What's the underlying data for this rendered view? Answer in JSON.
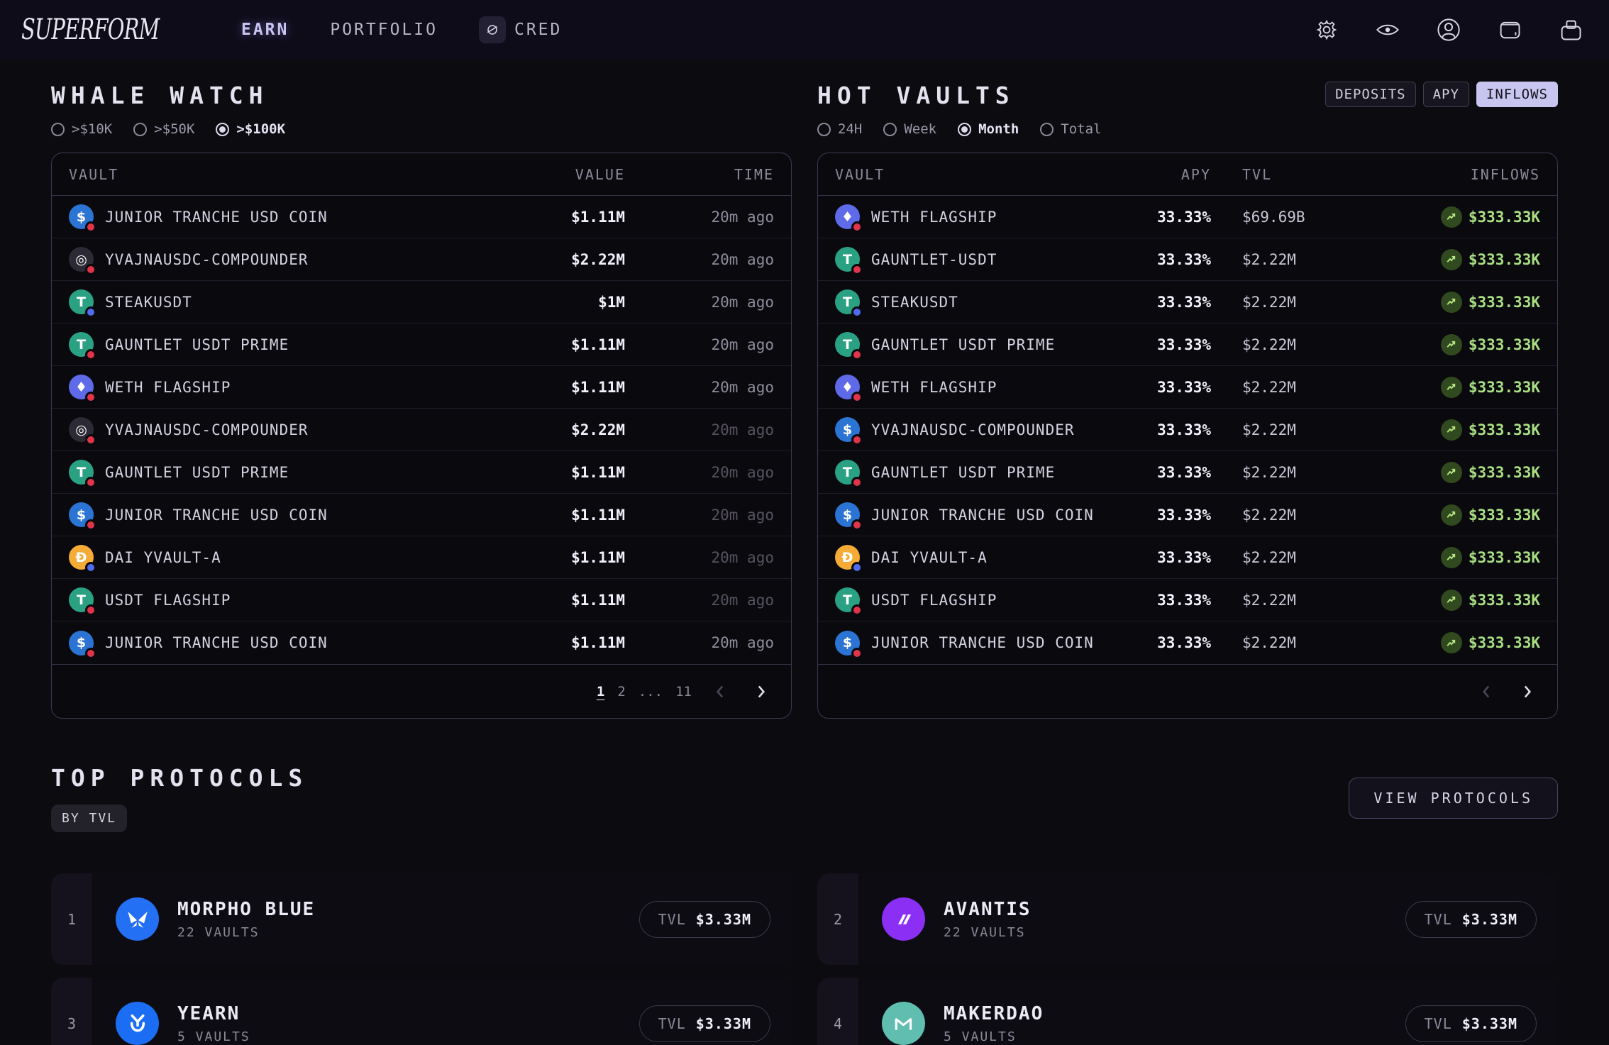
{
  "nav": {
    "logo": "SUPERFORM",
    "items": [
      {
        "label": "EARN",
        "active": true
      },
      {
        "label": "PORTFOLIO",
        "active": false
      },
      {
        "label": "CRED",
        "active": false,
        "icon": "cred-icon"
      }
    ],
    "icons": [
      "settings-icon",
      "eye-icon",
      "account-icon",
      "wallet-icon",
      "bag-icon"
    ]
  },
  "whale_watch": {
    "title": "WHALE WATCH",
    "filters": [
      {
        "label": ">$10K",
        "selected": false
      },
      {
        "label": ">$50K",
        "selected": false
      },
      {
        "label": ">$100K",
        "selected": true
      }
    ],
    "columns": [
      "VAULT",
      "VALUE",
      "TIME"
    ],
    "rows": [
      {
        "name": "JUNIOR TRANCHE USD COIN",
        "icon": "usdc",
        "value": "$1.11M",
        "time": "20m ago",
        "dim": false
      },
      {
        "name": "YVAJNAUSDC-COMPOUNDER",
        "icon": "yvault",
        "value": "$2.22M",
        "time": "20m ago",
        "dim": false
      },
      {
        "name": "STEAKUSDT",
        "icon": "usdt-blue",
        "value": "$1M",
        "time": "20m ago",
        "dim": false
      },
      {
        "name": "GAUNTLET USDT PRIME",
        "icon": "usdt-red",
        "value": "$1.11M",
        "time": "20m ago",
        "dim": false
      },
      {
        "name": "WETH FLAGSHIP",
        "icon": "weth",
        "value": "$1.11M",
        "time": "20m ago",
        "dim": false
      },
      {
        "name": "YVAJNAUSDC-COMPOUNDER",
        "icon": "yvault",
        "value": "$2.22M",
        "time": "20m ago",
        "dim": true
      },
      {
        "name": "GAUNTLET USDT PRIME",
        "icon": "usdt-red",
        "value": "$1.11M",
        "time": "20m ago",
        "dim": true
      },
      {
        "name": "JUNIOR TRANCHE USD COIN",
        "icon": "usdc",
        "value": "$1.11M",
        "time": "20m ago",
        "dim": true
      },
      {
        "name": "DAI YVAULT-A",
        "icon": "dai",
        "value": "$1.11M",
        "time": "20m ago",
        "dim": true
      },
      {
        "name": "USDT FLAGSHIP",
        "icon": "usdt-red",
        "value": "$1.11M",
        "time": "20m ago",
        "dim": true
      },
      {
        "name": "JUNIOR TRANCHE USD COIN",
        "icon": "usdc",
        "value": "$1.11M",
        "time": "20m ago",
        "dim": false
      }
    ],
    "pagination": {
      "pages": [
        "1",
        "2",
        "...",
        "11"
      ],
      "current": "1"
    }
  },
  "hot_vaults": {
    "title": "HOT VAULTS",
    "tabs": [
      {
        "label": "DEPOSITS",
        "selected": false
      },
      {
        "label": "APY",
        "selected": false
      },
      {
        "label": "INFLOWS",
        "selected": true
      }
    ],
    "filters": [
      {
        "label": "24H",
        "selected": false
      },
      {
        "label": "Week",
        "selected": false
      },
      {
        "label": "Month",
        "selected": true
      },
      {
        "label": "Total",
        "selected": false
      }
    ],
    "columns": [
      "VAULT",
      "APY",
      "TVL",
      "INFLOWS"
    ],
    "rows": [
      {
        "name": "WETH FLAGSHIP",
        "icon": "weth",
        "apy": "33.33%",
        "tvl": "$69.69B",
        "inflows": "$333.33K"
      },
      {
        "name": "GAUNTLET-USDT",
        "icon": "usdt-red",
        "apy": "33.33%",
        "tvl": "$2.22M",
        "inflows": "$333.33K"
      },
      {
        "name": "STEAKUSDT",
        "icon": "usdt-blue",
        "apy": "33.33%",
        "tvl": "$2.22M",
        "inflows": "$333.33K"
      },
      {
        "name": "GAUNTLET USDT PRIME",
        "icon": "usdt-red",
        "apy": "33.33%",
        "tvl": "$2.22M",
        "inflows": "$333.33K"
      },
      {
        "name": "WETH FLAGSHIP",
        "icon": "weth",
        "apy": "33.33%",
        "tvl": "$2.22M",
        "inflows": "$333.33K"
      },
      {
        "name": "YVAJNAUSDC-COMPOUNDER",
        "icon": "usdc",
        "apy": "33.33%",
        "tvl": "$2.22M",
        "inflows": "$333.33K"
      },
      {
        "name": "GAUNTLET USDT PRIME",
        "icon": "usdt-red",
        "apy": "33.33%",
        "tvl": "$2.22M",
        "inflows": "$333.33K"
      },
      {
        "name": "JUNIOR TRANCHE USD COIN",
        "icon": "usdc",
        "apy": "33.33%",
        "tvl": "$2.22M",
        "inflows": "$333.33K"
      },
      {
        "name": "DAI YVAULT-A",
        "icon": "dai",
        "apy": "33.33%",
        "tvl": "$2.22M",
        "inflows": "$333.33K"
      },
      {
        "name": "USDT FLAGSHIP",
        "icon": "usdt-red",
        "apy": "33.33%",
        "tvl": "$2.22M",
        "inflows": "$333.33K"
      },
      {
        "name": "JUNIOR TRANCHE USD COIN",
        "icon": "usdc",
        "apy": "33.33%",
        "tvl": "$2.22M",
        "inflows": "$333.33K"
      }
    ]
  },
  "top_protocols": {
    "title": "TOP PROTOCOLS",
    "filter_chip": "BY TVL",
    "view_button": "VIEW PROTOCOLS",
    "cards": [
      {
        "rank": "1",
        "name": "MORPHO BLUE",
        "vaults": "22 VAULTS",
        "tvl_label": "TVL",
        "tvl": "$3.33M",
        "logo": "morpho-butterfly",
        "color": "#2470f4"
      },
      {
        "rank": "2",
        "name": "AVANTIS",
        "vaults": "22 VAULTS",
        "tvl_label": "TVL",
        "tvl": "$3.33M",
        "logo": "avantis-slashes",
        "color": "#8b2ff5"
      },
      {
        "rank": "3",
        "name": "YEARN",
        "vaults": "5 VAULTS",
        "tvl_label": "TVL",
        "tvl": "$3.33M",
        "logo": "yearn-y",
        "color": "#1b6ef3"
      },
      {
        "rank": "4",
        "name": "MAKERDAO",
        "vaults": "5 VAULTS",
        "tvl_label": "TVL",
        "tvl": "$3.33M",
        "logo": "maker-m",
        "color": "#5fbeaf"
      }
    ]
  },
  "token_icons": {
    "usdc": {
      "bg": "#2b74d3",
      "glyph": "$",
      "badge": "#e0344a"
    },
    "yvault": {
      "bg": "#2c2a35",
      "glyph": "◎",
      "badge": "#e0344a"
    },
    "usdt-red": {
      "bg": "#2ba183",
      "glyph": "T",
      "badge": "#e0344a"
    },
    "usdt-blue": {
      "bg": "#2ba183",
      "glyph": "T",
      "badge": "#4f6bee"
    },
    "weth": {
      "bg": "#5e6ae8",
      "glyph": "♦",
      "badge": "#e0344a"
    },
    "dai": {
      "bg": "#f5ac37",
      "glyph": "Đ",
      "badge": "#4f6bee"
    }
  },
  "colors": {
    "accent_lavender": "#c9c5f1",
    "inflow_green": "#a9df82",
    "inflow_badge_bg": "#31491e",
    "page_bg": "#0c0b10",
    "nav_bg": "#0f0c1a",
    "panel_border": "#3d3852"
  }
}
